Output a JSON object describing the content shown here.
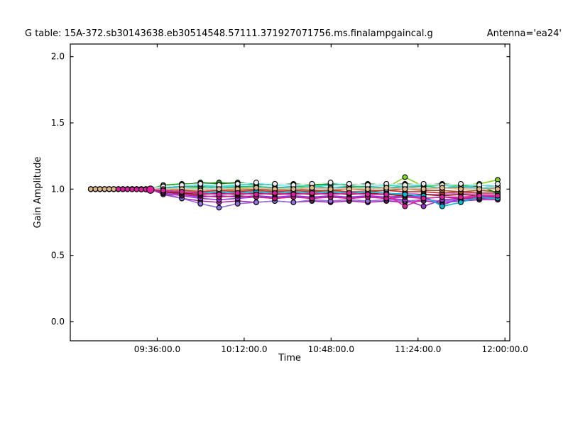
{
  "chart_data": {
    "type": "line",
    "title": "G table: 15A-372.sb30143638.eb30514548.57111.371927071756.ms.finalampgaincal.g",
    "annotation": "Antenna='ea24'",
    "xlabel": "Time",
    "ylabel": "Gain Amplitude",
    "x_unit": "minutes after 09:00:00",
    "xlim": [
      0,
      182
    ],
    "ylim": [
      -0.145,
      2.095
    ],
    "grid": false,
    "legend": "none",
    "marker": "circle",
    "marker_edge_color": "#000000",
    "axes_color": "#000000",
    "background_color": "#ffffff",
    "x_ticks": [
      {
        "t": 36,
        "label": "09:36:00.0"
      },
      {
        "t": 72,
        "label": "10:12:00.0"
      },
      {
        "t": 108,
        "label": "10:48:00.0"
      },
      {
        "t": 144,
        "label": "11:24:00.0"
      },
      {
        "t": 180,
        "label": "12:00:00.0"
      }
    ],
    "y_ticks": [
      {
        "v": 0.0,
        "label": "0.0"
      },
      {
        "v": 0.5,
        "label": "0.5"
      },
      {
        "v": 1.0,
        "label": "1.0"
      },
      {
        "v": 1.5,
        "label": "1.5"
      },
      {
        "v": 2.0,
        "label": "2.0"
      }
    ],
    "times": [
      8.5,
      10.4,
      12.3,
      14.2,
      16.1,
      18,
      19.9,
      21.8,
      23.7,
      25.6,
      27.5,
      29.4,
      31.3,
      33.2,
      38.5,
      46.2,
      53.9,
      61.6,
      69.3,
      77,
      84.7,
      92.4,
      100.1,
      107.8,
      115.5,
      123.2,
      130.9,
      138.6,
      146.3,
      154,
      161.7,
      169.4,
      177
    ],
    "series": [
      {
        "name": "dark-magenta",
        "color": "#aa22aa",
        "amps": [
          1,
          1,
          1,
          1,
          1,
          1,
          1,
          1,
          1,
          1,
          1,
          1,
          1,
          1,
          0.96,
          0.93,
          0.91,
          0.9,
          0.91,
          0.9,
          0.91,
          0.9,
          0.91,
          0.9,
          0.91,
          0.9,
          0.91,
          0.9,
          0.91,
          0.9,
          0.91,
          0.92,
          0.92
        ]
      },
      {
        "name": "medium-purple",
        "color": "#9370db",
        "amps": [
          1,
          1,
          1,
          1,
          1,
          1,
          1,
          1,
          1,
          1,
          1,
          1,
          1,
          1,
          0.97,
          0.93,
          0.89,
          0.86,
          0.89,
          0.9,
          0.91,
          0.9,
          0.92,
          0.91,
          0.92,
          0.91,
          0.92,
          0.91,
          0.92,
          0.91,
          0.92,
          0.93,
          0.93
        ]
      },
      {
        "name": "blue-violet",
        "color": "#8a2be2",
        "amps": [
          1,
          1,
          1,
          1,
          1,
          1,
          1,
          1,
          1,
          1,
          1,
          1,
          1,
          1,
          0.98,
          0.96,
          0.94,
          0.95,
          0.94,
          0.95,
          0.94,
          0.95,
          0.94,
          0.95,
          0.94,
          0.95,
          0.94,
          0.95,
          0.94,
          0.88,
          0.93,
          0.94,
          0.95
        ]
      },
      {
        "name": "dark-orchid",
        "color": "#9932cc",
        "amps": [
          1,
          1,
          1,
          1,
          1,
          1,
          1,
          1,
          1,
          1,
          1,
          1,
          1,
          1,
          0.97,
          0.95,
          0.93,
          0.92,
          0.93,
          0.94,
          0.93,
          0.94,
          0.93,
          0.94,
          0.93,
          0.94,
          0.93,
          0.92,
          0.87,
          0.92,
          0.93,
          0.93,
          0.94
        ]
      },
      {
        "name": "orchid",
        "color": "#da70d6",
        "amps": [
          1,
          1,
          1,
          1,
          1,
          1,
          1,
          1,
          1,
          1,
          1,
          1,
          1,
          1,
          0.98,
          0.97,
          0.96,
          0.97,
          0.96,
          0.97,
          0.96,
          0.96,
          0.97,
          0.96,
          0.97,
          0.96,
          0.96,
          0.97,
          0.96,
          0.96,
          0.97,
          0.96,
          0.96
        ]
      },
      {
        "name": "medium-violet-red",
        "color": "#c71585",
        "amps": [
          1,
          1,
          1,
          1,
          1,
          1,
          1,
          1,
          1,
          1,
          1,
          1,
          1,
          1,
          0.98,
          0.96,
          0.95,
          0.94,
          0.95,
          0.94,
          0.93,
          0.94,
          0.93,
          0.94,
          0.93,
          0.94,
          0.93,
          0.94,
          0.93,
          0.94,
          0.93,
          0.94,
          0.94
        ]
      },
      {
        "name": "dark-red",
        "color": "#8b1a1a",
        "amps": [
          1,
          1,
          1,
          1,
          1,
          1,
          1,
          1,
          1,
          1,
          1,
          1,
          1,
          1,
          0.98,
          0.97,
          0.96,
          0.97,
          0.96,
          0.97,
          0.96,
          0.97,
          0.96,
          0.97,
          0.96,
          0.97,
          0.96,
          0.95,
          0.96,
          0.95,
          0.96,
          0.95,
          0.95
        ]
      },
      {
        "name": "firebrick",
        "color": "#b5322a",
        "amps": [
          1,
          1,
          1,
          1,
          1,
          1,
          1,
          1,
          1,
          1,
          1,
          1,
          1,
          1,
          0.99,
          0.98,
          0.98,
          0.99,
          0.98,
          0.99,
          0.98,
          0.99,
          0.98,
          0.99,
          0.98,
          0.98,
          0.99,
          0.98,
          0.98,
          0.97,
          0.98,
          0.97,
          0.97
        ]
      },
      {
        "name": "sienna",
        "color": "#a0522d",
        "amps": [
          1,
          1,
          1,
          1,
          1,
          1,
          1,
          1,
          1,
          1,
          1,
          1,
          1,
          1,
          1.0,
          0.99,
          0.99,
          1.0,
          0.99,
          1.0,
          0.99,
          1.0,
          0.99,
          0.99,
          1.0,
          0.99,
          0.99,
          1.0,
          0.99,
          0.99,
          0.98,
          0.99,
          0.98
        ]
      },
      {
        "name": "peru",
        "color": "#cd853f",
        "amps": [
          1,
          1,
          1,
          1,
          1,
          1,
          1,
          1,
          1,
          1,
          1,
          1,
          1,
          1,
          1.01,
          1.01,
          1.02,
          1.01,
          1.01,
          1.02,
          1.01,
          1.01,
          1.02,
          1.01,
          1.01,
          1.02,
          1.01,
          1.01,
          1.02,
          1.01,
          1.01,
          1.0,
          1.01
        ]
      },
      {
        "name": "dark-green",
        "color": "#0e6b0e",
        "amps": [
          1,
          1,
          1,
          1,
          1,
          1,
          1,
          1,
          1,
          1,
          1,
          1,
          1,
          1,
          1.02,
          1.03,
          1.05,
          1.04,
          1.05,
          1.04,
          1.03,
          1.04,
          1.03,
          1.04,
          1.03,
          1.04,
          1.03,
          1.04,
          1.03,
          1.04,
          1.03,
          1.02,
          0.97
        ]
      },
      {
        "name": "green",
        "color": "#22a022",
        "amps": [
          1,
          1,
          1,
          1,
          1,
          1,
          1,
          1,
          1,
          1,
          1,
          1,
          1,
          1,
          1.03,
          1.04,
          1.04,
          1.05,
          1.04,
          1.03,
          1.04,
          1.03,
          1.04,
          1.03,
          1.04,
          1.03,
          1.04,
          1.03,
          1.04,
          1.03,
          1.02,
          1.03,
          1.02
        ]
      },
      {
        "name": "chartreuse",
        "color": "#7cd41e",
        "amps": [
          1,
          1,
          1,
          1,
          1,
          1,
          1,
          1,
          1,
          1,
          1,
          1,
          1,
          1,
          1.0,
          1.01,
          1.01,
          1.02,
          1.01,
          1.02,
          1.01,
          1.01,
          1.02,
          1.01,
          1.02,
          1.01,
          1.01,
          1.09,
          1.02,
          1.03,
          1.03,
          1.04,
          1.07
        ]
      },
      {
        "name": "teal",
        "color": "#20b2aa",
        "amps": [
          1,
          1,
          1,
          1,
          1,
          1,
          1,
          1,
          1,
          1,
          1,
          1,
          1,
          1,
          1.01,
          1.02,
          1.02,
          1.01,
          1.02,
          1.02,
          1.01,
          1.02,
          1.02,
          1.01,
          1.02,
          1.02,
          1.01,
          1.02,
          1.02,
          1.01,
          1.02,
          1.01,
          1.0
        ]
      },
      {
        "name": "turquoise",
        "color": "#40e0d0",
        "amps": [
          1,
          1,
          1,
          1,
          1,
          1,
          1,
          1,
          1,
          1,
          1,
          1,
          1,
          1,
          1.02,
          1.03,
          1.03,
          1.02,
          1.03,
          1.04,
          1.03,
          1.03,
          1.02,
          1.03,
          1.04,
          1.03,
          1.03,
          1.02,
          1.03,
          1.03,
          1.02,
          1.03,
          1.02
        ]
      },
      {
        "name": "cyan",
        "color": "#00bcd4",
        "amps": [
          1,
          1,
          1,
          1,
          1,
          1,
          1,
          1,
          1,
          1,
          1,
          1,
          1,
          1,
          0.99,
          0.98,
          0.97,
          0.98,
          0.97,
          0.98,
          0.97,
          0.98,
          0.97,
          0.98,
          0.97,
          0.98,
          0.97,
          0.96,
          0.95,
          0.87,
          0.9,
          0.94,
          0.93
        ]
      },
      {
        "name": "light-blue",
        "color": "#a8d8ea",
        "amps": [
          1,
          1,
          1,
          1,
          1,
          1,
          1,
          1,
          1,
          1,
          1,
          1,
          1,
          1,
          1.0,
          1.01,
          1.0,
          1.01,
          1.0,
          1.01,
          1.0,
          1.01,
          1.0,
          1.01,
          1.0,
          1.01,
          1.0,
          1.01,
          1.0,
          1.01,
          1.0,
          1.01,
          1.02
        ]
      },
      {
        "name": "white",
        "color": "#eeeef6",
        "amps": [
          1,
          1,
          1,
          1,
          1,
          1,
          1,
          1,
          1,
          1,
          1,
          1,
          1,
          1,
          1.02,
          1.03,
          1.04,
          1.03,
          1.04,
          1.05,
          1.04,
          1.03,
          1.04,
          1.05,
          1.04,
          1.03,
          1.04,
          1.03,
          1.04,
          1.03,
          1.04,
          1.03,
          1.04
        ]
      },
      {
        "name": "wheat",
        "color": "#deb887",
        "amps": [
          1,
          1,
          1,
          1,
          1,
          1,
          1,
          1,
          1,
          1,
          1,
          1,
          1,
          1,
          1.0,
          1.0,
          0.99,
          1.0,
          1.0,
          1.01,
          1.0,
          1.0,
          1.01,
          1.0,
          1.0,
          1.0,
          1.01,
          1.0,
          1.0,
          1.01,
          1.0,
          1.0,
          1.0
        ]
      },
      {
        "name": "magenta",
        "color": "#dd1fa0",
        "big_point_index": 13,
        "amps": [
          null,
          null,
          null,
          null,
          null,
          null,
          1.0,
          0.999,
          0.999,
          0.998,
          0.998,
          0.997,
          0.997,
          0.996,
          0.99,
          0.98,
          0.97,
          0.96,
          0.97,
          0.96,
          0.97,
          0.96,
          0.97,
          0.96,
          0.97,
          0.96,
          0.96,
          0.87,
          0.93,
          0.94,
          0.94,
          0.95,
          0.95
        ]
      }
    ]
  }
}
